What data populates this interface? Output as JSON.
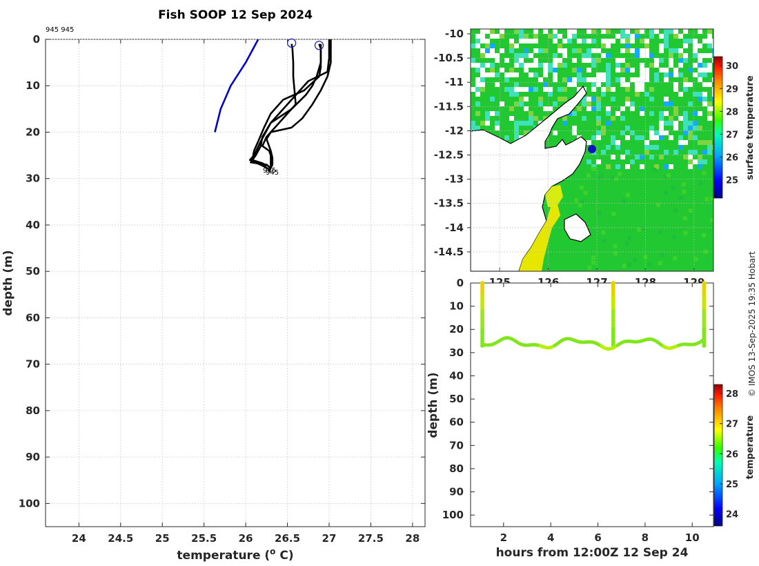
{
  "header": {
    "title": "Fish SOOP 12 Sep 2024",
    "cast_ids": "945 945",
    "copyright": "© IMOS 13-Sep-2025 19:35 Hobart"
  },
  "colors": {
    "climatology": "#0000cc",
    "profile": "#000000",
    "marker": "#2222aa",
    "grid": "#d0d0d0"
  },
  "chart_data": [
    {
      "type": "line",
      "title": "Fish SOOP 12 Sep 2024",
      "xlabel": "temperature (° C)",
      "xlabel_pre": "temperature (",
      "xlabel_sup": "o",
      "xlabel_post": " C)",
      "ylabel": "depth (m)",
      "xlim": [
        23.6,
        28.15
      ],
      "ylim": [
        105,
        0
      ],
      "xticks": [
        24,
        24.5,
        25,
        25.5,
        26,
        26.5,
        27,
        27.5,
        28
      ],
      "yticks": [
        0,
        10,
        20,
        30,
        40,
        50,
        60,
        70,
        80,
        90,
        100
      ],
      "grid": true,
      "profile_label": "945",
      "series": [
        {
          "name": "climatology",
          "color": "blue",
          "points": [
            [
              26.15,
              0
            ],
            [
              26.0,
              5
            ],
            [
              25.82,
              10
            ],
            [
              25.7,
              15
            ],
            [
              25.63,
              20
            ]
          ]
        },
        {
          "name": "profile-1",
          "color": "black",
          "points": [
            [
              26.55,
              1
            ],
            [
              26.56,
              2
            ],
            [
              26.57,
              5
            ],
            [
              26.57,
              8
            ],
            [
              26.58,
              10
            ],
            [
              26.6,
              14
            ],
            [
              26.4,
              18
            ],
            [
              26.25,
              21
            ],
            [
              26.2,
              23
            ],
            [
              26.28,
              24
            ],
            [
              26.3,
              25
            ],
            [
              26.3,
              27.5
            ]
          ]
        },
        {
          "name": "profile-2",
          "color": "black",
          "points": [
            [
              26.88,
              1
            ],
            [
              26.9,
              2
            ],
            [
              26.9,
              6
            ],
            [
              26.88,
              8
            ],
            [
              26.7,
              11
            ],
            [
              26.45,
              13
            ],
            [
              26.3,
              16
            ],
            [
              26.22,
              19
            ],
            [
              26.15,
              22
            ],
            [
              26.1,
              24
            ],
            [
              26.08,
              26
            ],
            [
              26.2,
              26.7
            ],
            [
              26.25,
              27.3
            ]
          ]
        },
        {
          "name": "profile-3",
          "color": "black",
          "points": [
            [
              26.9,
              1
            ],
            [
              26.9,
              5
            ],
            [
              26.85,
              8
            ],
            [
              26.8,
              10
            ],
            [
              26.72,
              12
            ],
            [
              26.55,
              15
            ],
            [
              26.3,
              18
            ],
            [
              26.2,
              21
            ],
            [
              26.18,
              23
            ],
            [
              26.12,
              25
            ],
            [
              26.06,
              26.5
            ],
            [
              26.25,
              27
            ],
            [
              26.3,
              27.8
            ]
          ]
        },
        {
          "name": "profile-4",
          "color": "black",
          "points": [
            [
              27.0,
              0
            ],
            [
              27.0,
              4
            ],
            [
              26.98,
              7
            ],
            [
              26.75,
              9
            ],
            [
              26.6,
              12
            ],
            [
              26.45,
              15
            ],
            [
              26.3,
              18
            ],
            [
              26.18,
              22
            ],
            [
              26.1,
              25
            ],
            [
              26.05,
              26
            ],
            [
              26.2,
              27.2
            ],
            [
              26.28,
              28
            ]
          ]
        },
        {
          "name": "profile-5",
          "color": "black",
          "points": [
            [
              27.02,
              0
            ],
            [
              27.02,
              5
            ],
            [
              26.98,
              8
            ],
            [
              26.9,
              11
            ],
            [
              26.8,
              14
            ],
            [
              26.68,
              17
            ],
            [
              26.55,
              19
            ],
            [
              26.3,
              20
            ],
            [
              26.25,
              21.5
            ],
            [
              26.3,
              24
            ],
            [
              26.32,
              25.5
            ],
            [
              26.32,
              27
            ],
            [
              26.28,
              28.5
            ]
          ]
        }
      ],
      "markers": [
        [
          26.55,
          0.8
        ],
        [
          26.88,
          1.3
        ]
      ]
    },
    {
      "type": "heatmap",
      "ylabel": "",
      "yticks": [
        -10,
        -10.5,
        -11,
        -11.5,
        -12,
        -12.5,
        -13,
        -13.5,
        -14,
        -14.5
      ],
      "xticks": [
        125,
        126,
        127,
        128,
        129
      ],
      "xlim": [
        124.4,
        129.4
      ],
      "ylim": [
        -14.9,
        -9.9
      ],
      "ship_position": [
        126.95,
        -12.42
      ],
      "colorbar": {
        "label": "surface temperature",
        "ticks": [
          25,
          26,
          27,
          28,
          29,
          30
        ],
        "range": [
          24.2,
          30.4
        ]
      }
    },
    {
      "type": "scatter",
      "xlabel": "hours from 12:00Z 12 Sep 24",
      "ylabel": "depth (m)",
      "xlim": [
        0.6,
        10.9
      ],
      "ylim": [
        105,
        0
      ],
      "xticks": [
        2,
        4,
        6,
        8,
        10
      ],
      "yticks": [
        0,
        10,
        20,
        30,
        40,
        50,
        60,
        70,
        80,
        90,
        100
      ],
      "casts_hours": [
        1.1,
        6.65,
        10.5
      ],
      "colorbar": {
        "label": "temperature",
        "ticks": [
          24,
          25,
          26,
          27,
          28
        ],
        "range": [
          23.6,
          28.3
        ]
      }
    }
  ]
}
